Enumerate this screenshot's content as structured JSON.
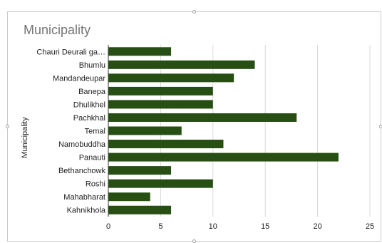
{
  "chart_data": {
    "type": "bar",
    "orientation": "horizontal",
    "title": "Municipality",
    "ylabel": "Municipality",
    "xlabel": "",
    "categories": [
      "Chauri Deurali ga…",
      "Bhumlu",
      "Mandandeupar",
      "Banepa",
      "Dhulikhel",
      "Pachkhal",
      "Temal",
      "Namobuddha",
      "Panauti",
      "Bethanchowk",
      "Roshi",
      "Mahabharat",
      "Kahnikhola"
    ],
    "values": [
      6,
      14,
      12,
      10,
      10,
      18,
      7,
      11,
      22,
      6,
      10,
      4,
      6
    ],
    "xlim": [
      0,
      25
    ],
    "xticks": [
      "0",
      "5",
      "10",
      "15",
      "20",
      "25"
    ],
    "grid": true,
    "bar_color": "#274e13"
  }
}
